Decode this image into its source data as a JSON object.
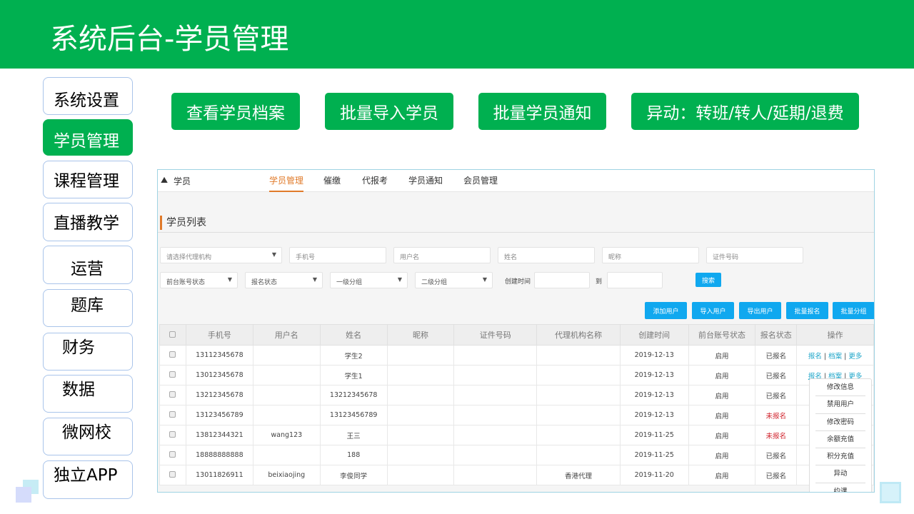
{
  "title": "系统后台-学员管理",
  "sidebar": [
    "系统设置",
    "学员管理",
    "课程管理",
    "直播教学",
    "运营",
    "题库",
    "财务",
    "数据",
    "微网校",
    "独立APP"
  ],
  "top_buttons": [
    "查看学员档案",
    "批量导入学员",
    "批量学员通知",
    "异动：转班/转人/延期/退费"
  ],
  "panel": {
    "brand": "学员",
    "brand_icon": "users-icon",
    "tabs": [
      "学员管理",
      "催缴",
      "代报考",
      "学员通知",
      "会员管理"
    ],
    "section": "学员列表",
    "filters": {
      "agency": "请选择代理机构",
      "phone": "手机号",
      "username": "用户名",
      "name": "姓名",
      "nickname": "昵称",
      "id": "证件号码",
      "account_status": "前台账号状态",
      "signup_status": "报名状态",
      "group1": "一级分组",
      "group2": "二级分组",
      "created": "创建时间",
      "to": "到",
      "search": "搜索"
    },
    "actions": [
      "添加用户",
      "导入用户",
      "导出用户",
      "批量报名",
      "批量分组"
    ],
    "columns": [
      "手机号",
      "用户名",
      "姓名",
      "昵称",
      "证件号码",
      "代理机构名称",
      "创建时间",
      "前台账号状态",
      "报名状态",
      "操作"
    ],
    "rows": [
      [
        "13112345678",
        "",
        "学生2",
        "",
        "",
        "",
        "2019-12-13",
        "启用",
        "已报名"
      ],
      [
        "13012345678",
        "",
        "学生1",
        "",
        "",
        "",
        "2019-12-13",
        "启用",
        "已报名"
      ],
      [
        "13212345678",
        "",
        "13212345678",
        "",
        "",
        "",
        "2019-12-13",
        "启用",
        "已报名"
      ],
      [
        "13123456789",
        "",
        "13123456789",
        "",
        "",
        "",
        "2019-12-13",
        "启用",
        "未报名"
      ],
      [
        "13812344321",
        "wang123",
        "王三",
        "",
        "",
        "",
        "2019-11-25",
        "启用",
        "未报名"
      ],
      [
        "18888888888",
        "",
        "188",
        "",
        "",
        "",
        "2019-11-25",
        "启用",
        "已报名"
      ],
      [
        "13011826911",
        "beixiaojing",
        "李俊同学",
        "",
        "",
        "香港代理",
        "2019-11-20",
        "启用",
        "已报名"
      ]
    ],
    "row_ops": [
      "报名",
      "档案",
      "更多"
    ],
    "more_menu": [
      "修改信息",
      "禁用用户",
      "修改密码",
      "余额充值",
      "积分充值",
      "异动",
      "约课"
    ],
    "colors": {
      "green": "#00b050",
      "blue": "#10a8ef",
      "orange": "#e07a2a",
      "red": "#d0202a"
    }
  }
}
